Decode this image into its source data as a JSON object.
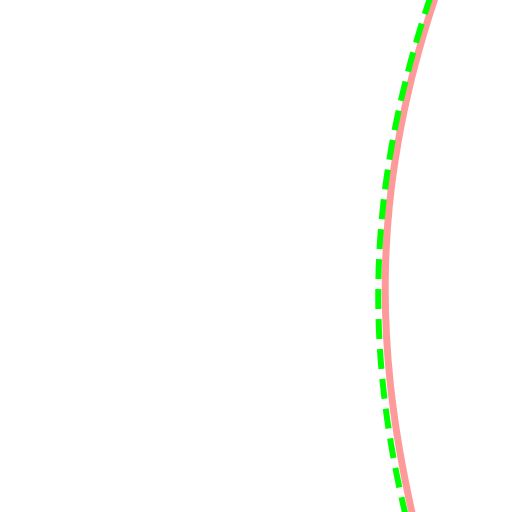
{
  "colors": {
    "background": "#ffffff",
    "solid_curve": "#ff9a9a",
    "dashed_curve": "#00ff00"
  },
  "curves": [
    {
      "name": "solid-arc",
      "style": "solid"
    },
    {
      "name": "dashed-arc",
      "style": "dashed"
    }
  ]
}
